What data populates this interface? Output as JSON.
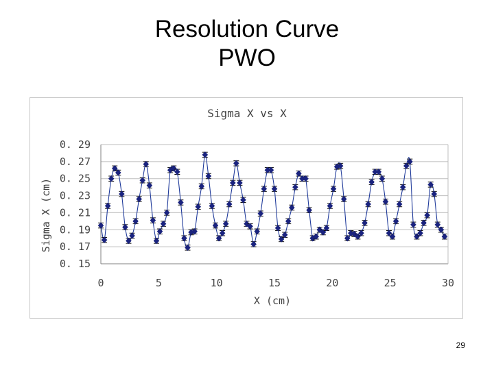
{
  "slide": {
    "title_line1": "Resolution Curve",
    "title_line2": "PWO",
    "page_number": "29"
  },
  "chart_data": {
    "type": "scatter",
    "title": "Sigma X vs X",
    "xlabel": "X (cm)",
    "ylabel": "Sigma X (cm)",
    "xlim": [
      0,
      30
    ],
    "ylim": [
      0.15,
      0.29
    ],
    "x_ticks": [
      "0",
      "5",
      "10",
      "15",
      "20",
      "25",
      "30"
    ],
    "y_ticks": [
      "0. 15",
      "0. 17",
      "0. 19",
      "0. 21",
      "0. 23",
      "0. 25",
      "0. 27",
      "0. 29"
    ],
    "grid": "horizontal",
    "marker_color": "#1a237e",
    "line_color": "#1f3a9a",
    "errorbar": 0.003,
    "series": [
      {
        "x": [
          0.0,
          0.3,
          0.6,
          0.9,
          1.2,
          1.5,
          1.8,
          2.1,
          2.4,
          2.7,
          3.0,
          3.3,
          3.6,
          3.9,
          4.2,
          4.5,
          4.8,
          5.1,
          5.4,
          5.7,
          6.0,
          6.3,
          6.6,
          6.9,
          7.2,
          7.5,
          7.8,
          8.1,
          8.4,
          8.7,
          9.0,
          9.3,
          9.6,
          9.9,
          10.2,
          10.5,
          10.8,
          11.1,
          11.4,
          11.7,
          12.0,
          12.3,
          12.6,
          12.9,
          13.2,
          13.5,
          13.8,
          14.1,
          14.4,
          14.7,
          15.0,
          15.3,
          15.6,
          15.9,
          16.2,
          16.5,
          16.8,
          17.1,
          17.4,
          17.7,
          18.0,
          18.3,
          18.6,
          18.9,
          19.2,
          19.5,
          19.8,
          20.1,
          20.4,
          20.7,
          21.0,
          21.3,
          21.6,
          21.9,
          22.2,
          22.5,
          22.8,
          23.1,
          23.4,
          23.7,
          24.0,
          24.3,
          24.6,
          24.9,
          25.2,
          25.5,
          25.8,
          26.1,
          26.4,
          26.7,
          27.0,
          27.3,
          27.6,
          27.9,
          28.2,
          28.5,
          28.8,
          29.1,
          29.4,
          29.7
        ],
        "y": [
          0.195,
          0.178,
          0.218,
          0.25,
          0.262,
          0.257,
          0.232,
          0.193,
          0.177,
          0.183,
          0.2,
          0.226,
          0.248,
          0.267,
          0.242,
          0.201,
          0.177,
          0.188,
          0.197,
          0.21,
          0.26,
          0.262,
          0.258,
          0.222,
          0.18,
          0.169,
          0.187,
          0.188,
          0.217,
          0.241,
          0.278,
          0.253,
          0.218,
          0.195,
          0.18,
          0.186,
          0.197,
          0.22,
          0.245,
          0.268,
          0.245,
          0.225,
          0.197,
          0.194,
          0.173,
          0.188,
          0.209,
          0.238,
          0.26,
          0.26,
          0.238,
          0.192,
          0.179,
          0.184,
          0.2,
          0.216,
          0.24,
          0.256,
          0.25,
          0.25,
          0.213,
          0.18,
          0.182,
          0.19,
          0.187,
          0.192,
          0.218,
          0.238,
          0.264,
          0.265,
          0.226,
          0.18,
          0.186,
          0.185,
          0.182,
          0.186,
          0.198,
          0.22,
          0.246,
          0.258,
          0.258,
          0.25,
          0.223,
          0.186,
          0.182,
          0.2,
          0.22,
          0.24,
          0.265,
          0.27,
          0.196,
          0.182,
          0.186,
          0.198,
          0.207,
          0.243,
          0.232,
          0.196,
          0.19,
          0.182
        ]
      }
    ]
  }
}
